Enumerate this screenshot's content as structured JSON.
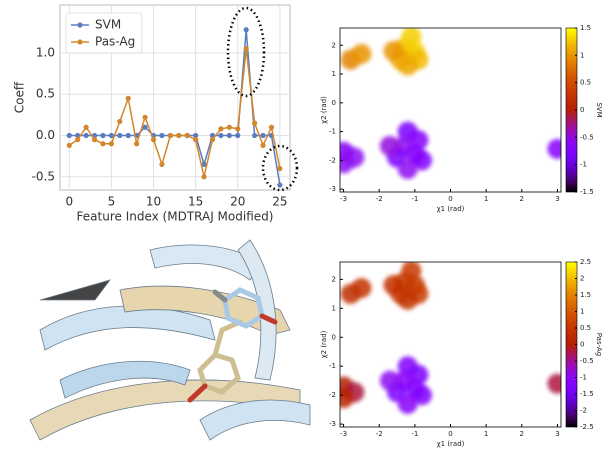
{
  "chart_data": [
    {
      "type": "line",
      "xlabel": "Feature Index (MDTRAJ Modified)",
      "ylabel": "Coeff",
      "x": [
        0,
        1,
        2,
        3,
        4,
        5,
        6,
        7,
        8,
        9,
        10,
        11,
        12,
        13,
        14,
        15,
        16,
        17,
        18,
        19,
        20,
        21,
        22,
        23,
        24,
        25
      ],
      "series": [
        {
          "name": "SVM",
          "color": "#5a7dbf",
          "values": [
            0,
            0,
            0,
            0,
            0,
            0,
            0,
            0,
            0,
            0.1,
            0,
            0,
            0,
            0,
            0,
            0,
            -0.35,
            0,
            0,
            0,
            0,
            1.28,
            0,
            0,
            0,
            -0.6
          ]
        },
        {
          "name": "Pas-Ag",
          "color": "#d3862c",
          "values": [
            -0.12,
            -0.05,
            0.1,
            -0.05,
            -0.1,
            -0.1,
            0.17,
            0.45,
            -0.1,
            0.22,
            -0.05,
            -0.35,
            0,
            0,
            0,
            -0.05,
            -0.5,
            -0.05,
            0.08,
            0.1,
            0.08,
            1.05,
            0.15,
            -0.12,
            0.1,
            -0.4
          ]
        }
      ],
      "xlim": [
        -1.1,
        26.2
      ],
      "xticks": [
        0,
        5,
        10,
        15,
        20,
        25
      ],
      "ylim": [
        -0.66,
        1.58
      ],
      "yticks": [
        -0.5,
        {
          "value": 0,
          "label": "0.0"
        },
        0.5,
        {
          "value": 1,
          "label": "1.0"
        }
      ],
      "grid": true,
      "legend": "upper-left"
    },
    {
      "type": "scatter",
      "xlabel": "χ1 (rad)",
      "ylabel": "χ2 (rad)",
      "colorbar_label": "SVM",
      "colormap": "gnuplot",
      "x": [
        -1.3,
        -1.0,
        -1.4,
        -0.9,
        -1.2,
        -1.6,
        -1.1,
        -2.8,
        -2.5,
        -1.2,
        -0.9,
        -1.3,
        -1.0,
        -1.5,
        -0.8,
        -1.2,
        -1.7,
        -3.0,
        -2.7,
        -3.0,
        3.0
      ],
      "y": [
        1.9,
        1.8,
        1.5,
        1.5,
        1.3,
        1.8,
        2.3,
        1.5,
        1.7,
        -1.0,
        -1.3,
        -1.5,
        -1.8,
        -1.9,
        -2.0,
        -2.3,
        -1.5,
        -1.7,
        -1.9,
        -2.1,
        -1.6
      ],
      "values": [
        1.2,
        1.3,
        1.1,
        1.2,
        1.1,
        1.0,
        1.3,
        0.9,
        1.0,
        -0.8,
        -0.7,
        -0.6,
        -0.7,
        -0.8,
        -0.7,
        -0.6,
        -0.5,
        -0.7,
        -0.6,
        -0.6,
        -0.7
      ],
      "xlim": [
        -3.1,
        3.1
      ],
      "xticks": [
        -3,
        -2,
        -1,
        0,
        1,
        2,
        3
      ],
      "ylim": [
        -3.1,
        2.6
      ],
      "yticks": [
        -3,
        -2,
        -1,
        0,
        1,
        2
      ],
      "clim": [
        -1.5,
        1.5
      ],
      "cticks": [
        -1.5,
        -1,
        -0.5,
        0,
        0.5,
        1,
        1.5
      ]
    },
    {
      "type": "scatter",
      "xlabel": "χ1 (rad)",
      "ylabel": "χ2 (rad)",
      "colorbar_label": "Pas-Ag",
      "colormap": "gnuplot",
      "x": [
        -1.3,
        -1.0,
        -1.4,
        -0.9,
        -1.2,
        -1.6,
        -1.1,
        -2.8,
        -2.5,
        -1.2,
        -0.9,
        -1.3,
        -1.0,
        -1.5,
        -0.8,
        -1.2,
        -1.7,
        -3.0,
        -2.7,
        -3.0,
        3.0
      ],
      "y": [
        1.9,
        1.8,
        1.5,
        1.5,
        1.3,
        1.8,
        2.3,
        1.5,
        1.7,
        -1.0,
        -1.3,
        -1.5,
        -1.8,
        -1.9,
        -2.0,
        -2.3,
        -1.5,
        -1.7,
        -1.9,
        -2.1,
        -1.6
      ],
      "values": [
        0.6,
        0.5,
        0.5,
        0.6,
        0.4,
        0.4,
        0.5,
        0.3,
        0.4,
        -1.2,
        -1.3,
        -1.1,
        -1.2,
        -1.3,
        -1.2,
        -1.1,
        -1.0,
        0,
        -0.2,
        0.1,
        -0.2
      ],
      "xlim": [
        -3.1,
        3.1
      ],
      "xticks": [
        -3,
        -2,
        -1,
        0,
        1,
        2,
        3
      ],
      "ylim": [
        -3.1,
        2.6
      ],
      "yticks": [
        -3,
        -2,
        -1,
        0,
        1,
        2
      ],
      "clim": [
        -2.5,
        2.5
      ],
      "cticks": [
        -2.5,
        -2,
        -1.5,
        -1,
        -0.5,
        0,
        0.5,
        1,
        1.5,
        2,
        2.5
      ]
    }
  ]
}
